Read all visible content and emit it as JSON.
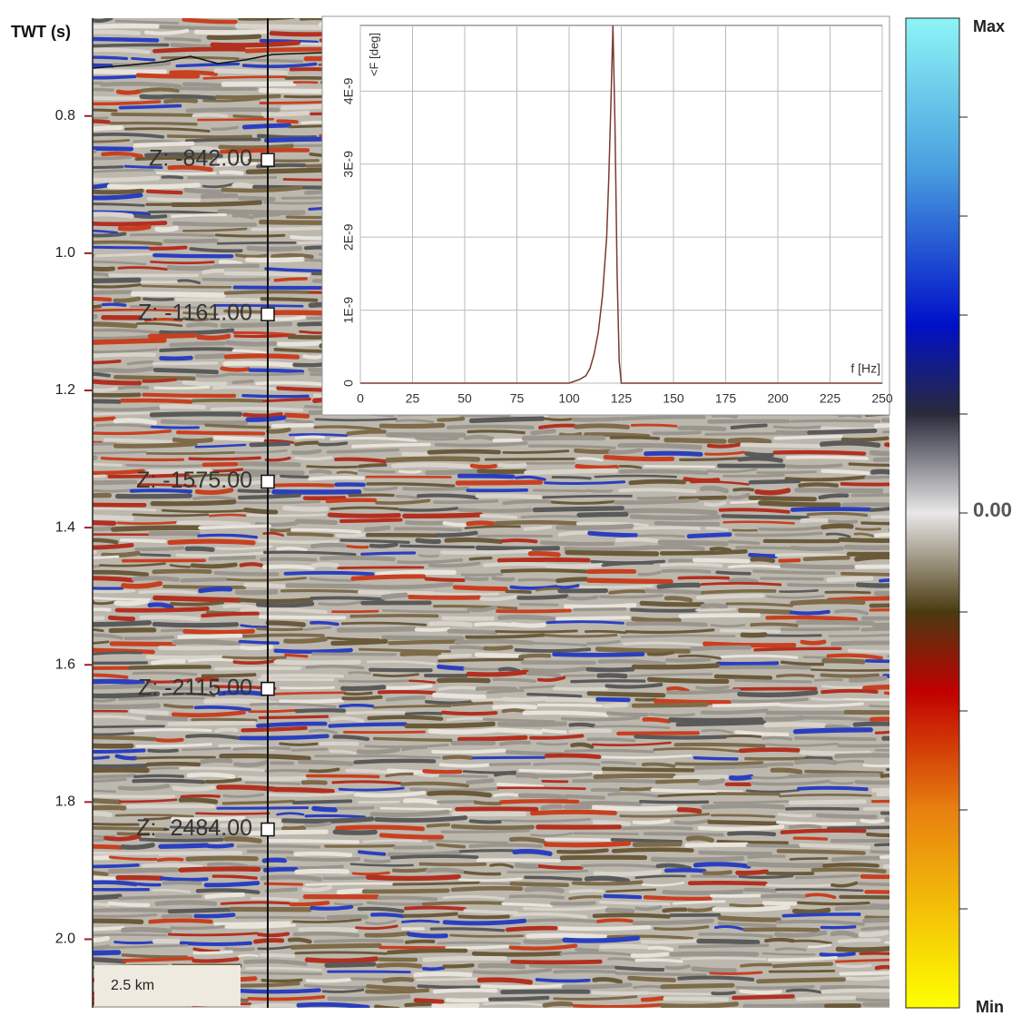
{
  "seismic": {
    "axis_label": "TWT (s)",
    "ylim": [
      0.66,
      2.1
    ],
    "yticks": [
      0.8,
      {
        "value": 1.0,
        "label": "1.0"
      },
      1.2,
      1.4,
      1.6,
      1.8,
      {
        "value": 2.0,
        "label": "2.0"
      }
    ],
    "well_markers": [
      {
        "label": "Z: -842.00",
        "twt": 0.864
      },
      {
        "label": "Z: -1161.00",
        "twt": 1.089
      },
      {
        "label": "Z: -1575.00",
        "twt": 1.333
      },
      {
        "label": "Z: -2115.00",
        "twt": 1.635
      },
      {
        "label": "Z: -2484.00",
        "twt": 1.84
      }
    ],
    "scale_bar": "2.5 km"
  },
  "colorbar": {
    "max_label": "Max",
    "center_label": "0.00",
    "min_label": "Min"
  },
  "chart_data": {
    "type": "line",
    "x_label": "f [Hz]",
    "y_label": "<F [deg]",
    "x": [
      0,
      100,
      105,
      108,
      110,
      112,
      114,
      116,
      118,
      119,
      120,
      121,
      122,
      123,
      124,
      125,
      250
    ],
    "values": [
      0,
      0,
      5e-11,
      1e-10,
      2e-10,
      4e-10,
      7e-10,
      1.2e-09,
      2e-09,
      2.8e-09,
      3.8e-09,
      4.9e-09,
      3.5e-09,
      1.5e-09,
      3e-10,
      0,
      0
    ],
    "color": "#7a3b2e",
    "xlim": [
      0,
      250
    ],
    "xticks": [
      0,
      25,
      50,
      75,
      100,
      125,
      150,
      175,
      200,
      225,
      250
    ],
    "ylim": [
      0,
      4.9e-09
    ],
    "yticks": [
      0,
      {
        "value": 1e-09,
        "label": "1E-9"
      },
      {
        "value": 2e-09,
        "label": "2E-9"
      },
      {
        "value": 3e-09,
        "label": "3E-9"
      },
      {
        "value": 4e-09,
        "label": "4E-9"
      }
    ],
    "grid": true
  }
}
